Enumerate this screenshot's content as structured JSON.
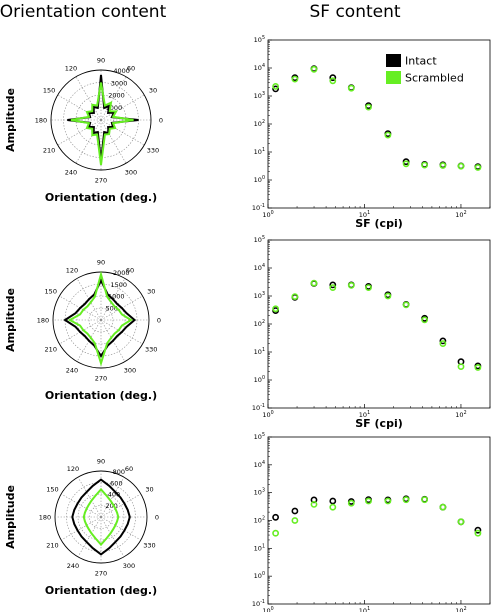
{
  "headings": {
    "left": "Orientation content",
    "right": "SF content"
  },
  "colors": {
    "intact": "#000000",
    "scrambled": "#66ee22"
  },
  "legend": [
    "Intact",
    "Scrambled"
  ],
  "chart_data": [
    {
      "type": "polar-line",
      "xlabel": "Orientation (deg.)",
      "ylabel": "Amplitude",
      "angle_ticks": [
        "0",
        "30",
        "60",
        "90",
        "120",
        "150",
        "180",
        "210",
        "240",
        "270",
        "300",
        "330"
      ],
      "rmax": 4000,
      "radial_ticks": [
        "1000",
        "2000",
        "3000",
        "4000"
      ],
      "angles": [
        0,
        15,
        30,
        45,
        60,
        75,
        90,
        105,
        120,
        135,
        150,
        165,
        180,
        195,
        210,
        225,
        240,
        255,
        270,
        285,
        300,
        315,
        330,
        345
      ],
      "series": [
        {
          "name": "Intact",
          "values": [
            3000,
            900,
            1200,
            800,
            1300,
            1000,
            3600,
            1000,
            1200,
            800,
            1100,
            900,
            2700,
            900,
            1100,
            800,
            1200,
            1000,
            3300,
            1000,
            1200,
            800,
            1100,
            900
          ]
        },
        {
          "name": "Scrambled",
          "values": [
            2600,
            1000,
            1400,
            1000,
            1600,
            1200,
            3000,
            1200,
            1400,
            1000,
            1300,
            1000,
            2400,
            1000,
            1300,
            1000,
            1400,
            1200,
            3600,
            1200,
            1300,
            1000,
            1300,
            1000
          ]
        }
      ]
    },
    {
      "type": "polar-line",
      "xlabel": "Orientation (deg.)",
      "ylabel": "Amplitude",
      "angle_ticks": [
        "0",
        "30",
        "60",
        "90",
        "120",
        "150",
        "180",
        "210",
        "240",
        "270",
        "300",
        "330"
      ],
      "rmax": 2000,
      "radial_ticks": [
        "500",
        "1000",
        "1500",
        "2000"
      ],
      "angles": [
        0,
        15,
        30,
        45,
        60,
        75,
        90,
        105,
        120,
        135,
        150,
        165,
        180,
        195,
        210,
        225,
        240,
        255,
        270,
        285,
        300,
        315,
        330,
        345
      ],
      "series": [
        {
          "name": "Intact",
          "values": [
            1400,
            1100,
            1000,
            950,
            1000,
            1100,
            1650,
            1100,
            1000,
            950,
            1000,
            1100,
            1500,
            1100,
            1000,
            950,
            1000,
            1100,
            1500,
            1100,
            1000,
            950,
            1000,
            1100
          ]
        },
        {
          "name": "Scrambled",
          "values": [
            1250,
            900,
            850,
            800,
            850,
            1000,
            1900,
            1000,
            850,
            800,
            850,
            900,
            1300,
            900,
            850,
            800,
            850,
            1000,
            1800,
            1000,
            850,
            800,
            850,
            900
          ]
        }
      ]
    },
    {
      "type": "polar-line",
      "xlabel": "Orientation (deg.)",
      "ylabel": "Amplitude",
      "angle_ticks": [
        "0",
        "30",
        "60",
        "90",
        "120",
        "150",
        "180",
        "210",
        "240",
        "270",
        "300",
        "330"
      ],
      "rmax": 800,
      "radial_ticks": [
        "200",
        "400",
        "600",
        "800"
      ],
      "angles": [
        0,
        15,
        30,
        45,
        60,
        75,
        90,
        105,
        120,
        135,
        150,
        165,
        180,
        195,
        210,
        225,
        240,
        255,
        270,
        285,
        300,
        315,
        330,
        345
      ],
      "series": [
        {
          "name": "Intact",
          "values": [
            500,
            480,
            470,
            480,
            500,
            560,
            650,
            560,
            500,
            480,
            470,
            480,
            500,
            480,
            470,
            480,
            500,
            560,
            650,
            560,
            500,
            480,
            470,
            480
          ]
        },
        {
          "name": "Scrambled",
          "values": [
            300,
            290,
            290,
            300,
            330,
            380,
            480,
            380,
            330,
            300,
            290,
            290,
            300,
            290,
            290,
            300,
            330,
            380,
            480,
            380,
            330,
            300,
            290,
            290
          ]
        }
      ]
    },
    {
      "type": "scatter",
      "xlabel": "SF (cpi)",
      "ylabel": "Amplitude",
      "xscale": "log",
      "yscale": "log",
      "xlim": [
        1,
        200
      ],
      "ylim": [
        0.1,
        100000
      ],
      "xticks": [
        "10^0",
        "10^1",
        "10^2"
      ],
      "yticks": [
        "10^-1",
        "10^0",
        "10^1",
        "10^2",
        "10^3",
        "10^4",
        "10^5"
      ],
      "legend_position": "top-right",
      "x": [
        1.2,
        1.9,
        3,
        4.7,
        7.3,
        11,
        17.5,
        27,
        42,
        65,
        100,
        150
      ],
      "series": [
        {
          "name": "Intact",
          "values": [
            1800,
            4500,
            9500,
            4500,
            2000,
            450,
            45,
            4.5,
            3.6,
            3.5,
            3.2,
            3.0
          ]
        },
        {
          "name": "Scrambled",
          "values": [
            2200,
            4000,
            9000,
            3500,
            1900,
            400,
            40,
            3.8,
            3.4,
            3.3,
            3.1,
            2.8
          ]
        }
      ]
    },
    {
      "type": "scatter",
      "xlabel": "SF (cpi)",
      "ylabel": "Amplitude",
      "xscale": "log",
      "yscale": "log",
      "xlim": [
        1,
        200
      ],
      "ylim": [
        0.1,
        100000
      ],
      "xticks": [
        "10^0",
        "10^1",
        "10^2"
      ],
      "yticks": [
        "10^-1",
        "10^0",
        "10^1",
        "10^2",
        "10^3",
        "10^4",
        "10^5"
      ],
      "x": [
        1.2,
        1.9,
        3,
        4.7,
        7.3,
        11,
        17.5,
        27,
        42,
        65,
        100,
        150
      ],
      "series": [
        {
          "name": "Intact",
          "values": [
            300,
            900,
            2800,
            2500,
            2500,
            2200,
            1100,
            500,
            160,
            25,
            4.5,
            3.2
          ]
        },
        {
          "name": "Scrambled",
          "values": [
            350,
            950,
            2900,
            2000,
            2400,
            2000,
            1000,
            480,
            140,
            20,
            3,
            2.8
          ]
        }
      ]
    },
    {
      "type": "scatter",
      "xlabel": "SF (cpi)",
      "ylabel": "Amplitude",
      "xscale": "log",
      "yscale": "log",
      "xlim": [
        1,
        200
      ],
      "ylim": [
        0.1,
        100000
      ],
      "xticks": [
        "10^0",
        "10^1",
        "10^2"
      ],
      "yticks": [
        "10^-1",
        "10^0",
        "10^1",
        "10^2",
        "10^3",
        "10^4",
        "10^5"
      ],
      "x": [
        1.2,
        1.9,
        3,
        4.7,
        7.3,
        11,
        17.5,
        27,
        42,
        65,
        100,
        150
      ],
      "series": [
        {
          "name": "Intact",
          "values": [
            130,
            220,
            550,
            500,
            480,
            560,
            550,
            600,
            580,
            300,
            90,
            45
          ]
        },
        {
          "name": "Scrambled",
          "values": [
            35,
            100,
            380,
            300,
            420,
            500,
            500,
            560,
            560,
            300,
            90,
            35
          ]
        }
      ]
    }
  ]
}
